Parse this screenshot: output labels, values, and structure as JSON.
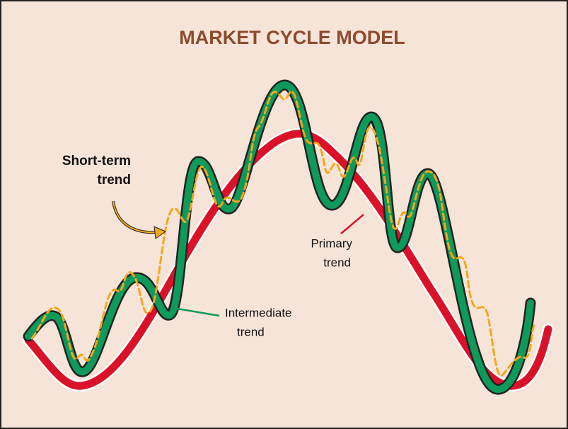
{
  "title": "MARKET CYCLE MODEL",
  "labels": {
    "short_term": [
      "Short-term",
      "trend"
    ],
    "primary": [
      "Primary",
      "trend"
    ],
    "intermediate": [
      "Intermediate",
      "trend"
    ]
  }
}
